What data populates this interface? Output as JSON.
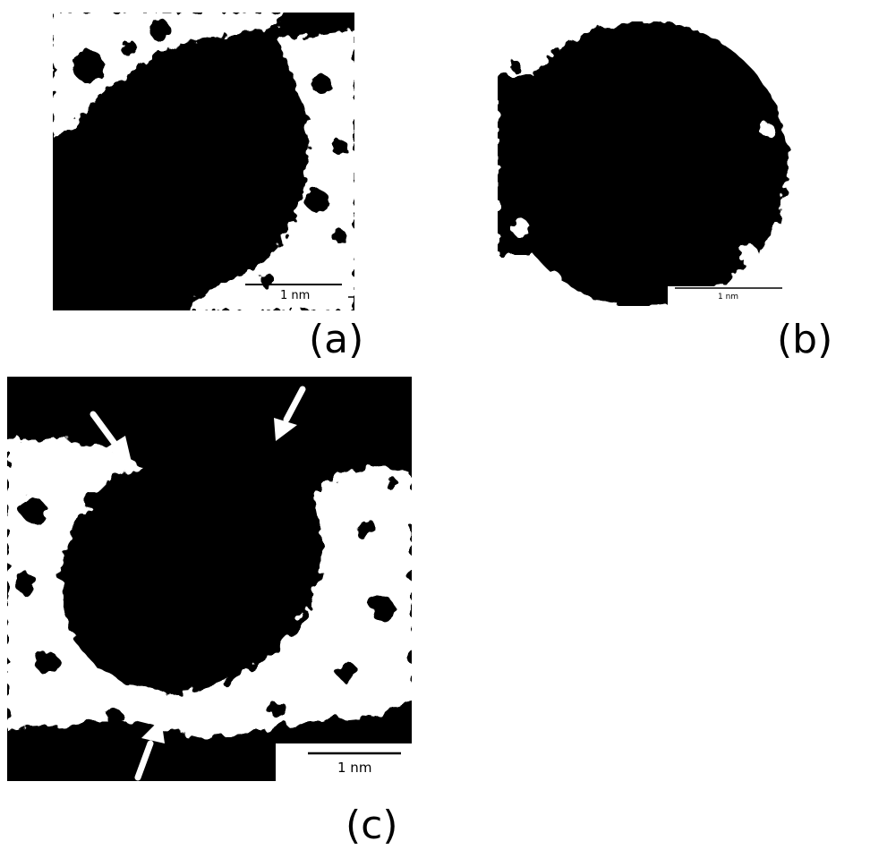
{
  "panels": [
    {
      "id": "a",
      "label": "(a)",
      "scale_bar": "1 nm"
    },
    {
      "id": "b",
      "label": "(b)",
      "scale_bar": "1 nm"
    },
    {
      "id": "c",
      "label": "(c)",
      "scale_bar": "1 nm"
    }
  ],
  "colors": {
    "particle": "#000000",
    "support": "#ffffff",
    "arrow": "#ffffff"
  }
}
